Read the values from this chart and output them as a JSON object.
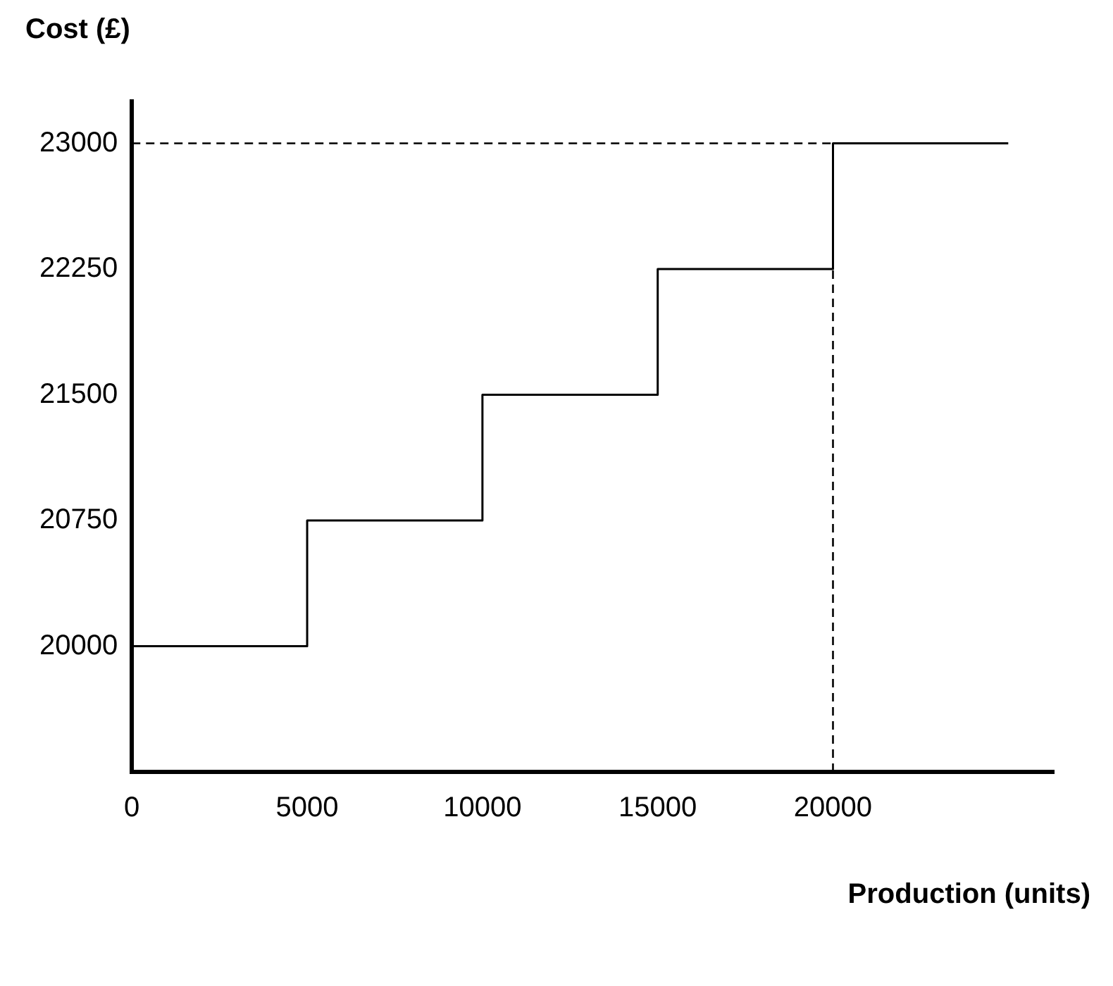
{
  "chart_data": {
    "type": "step",
    "xlabel": "Production (units)",
    "ylabel": "Cost (£)",
    "x": [
      0,
      5000,
      10000,
      15000,
      20000,
      25000
    ],
    "values": [
      20000,
      20750,
      21500,
      22250,
      23000,
      23000
    ],
    "color": "#000000",
    "xlim": [
      0,
      26300
    ],
    "xticks": [
      0,
      5000,
      10000,
      15000,
      20000
    ],
    "ylim": [
      19250,
      23250
    ],
    "yticks": [
      20000,
      20750,
      21500,
      22250,
      23000
    ],
    "grid": false,
    "legend": false,
    "marker": "none",
    "line_style": "solid",
    "ref_lines": [
      {
        "axis": "y",
        "value": 23000,
        "line_style": "dashed",
        "color": "#000000"
      },
      {
        "axis": "x",
        "value": 20000,
        "line_style": "dashed",
        "color": "#000000"
      }
    ]
  }
}
